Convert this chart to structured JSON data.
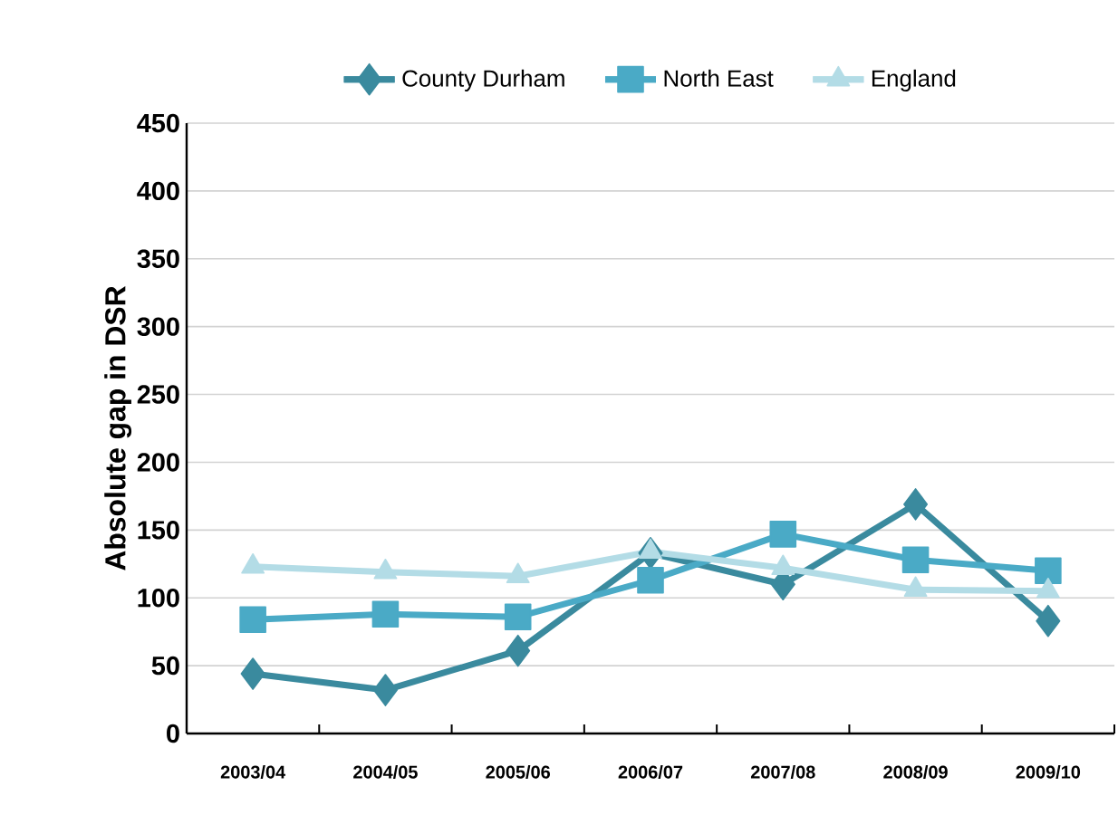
{
  "chart_data": {
    "type": "line",
    "ylabel": "Absolute gap in DSR",
    "categories": [
      "2003/04",
      "2004/05",
      "2005/06",
      "2006/07",
      "2007/08",
      "2008/09",
      "2009/10"
    ],
    "series": [
      {
        "name": "County Durham",
        "color": "#3a8a9e",
        "marker": "diamond",
        "values": [
          44,
          32,
          61,
          133,
          110,
          169,
          83
        ]
      },
      {
        "name": "North East",
        "color": "#4aaac6",
        "marker": "square",
        "values": [
          84,
          88,
          86,
          113,
          147,
          128,
          120
        ]
      },
      {
        "name": "England",
        "color": "#b3dce6",
        "marker": "triangle",
        "values": [
          123,
          119,
          116,
          134,
          122,
          106,
          105
        ]
      }
    ],
    "ylim": [
      0,
      450
    ],
    "yticks": [
      0,
      50,
      100,
      150,
      200,
      250,
      300,
      350,
      400,
      450
    ],
    "grid": "y",
    "legend": "top",
    "line_style": "solid"
  }
}
